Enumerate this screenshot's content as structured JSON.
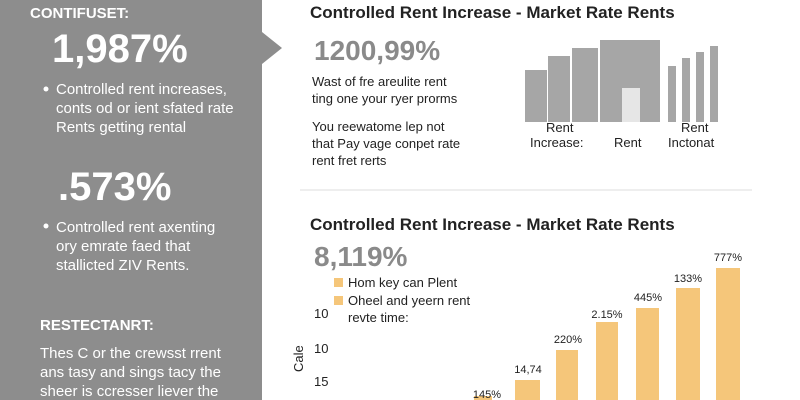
{
  "sidebar": {
    "heading": "CONTIFUSET:",
    "stat1": "1,987%",
    "text1": [
      "Controlled rent increases,",
      "conts od or ient sfated rate",
      "Rents getting rental"
    ],
    "stat2": ".573%",
    "text2": [
      "Controlled rent axenting",
      "ory emrate faed that",
      "stallicted ZIV Rents."
    ],
    "heading2": "RESTECTANRT:",
    "text3": [
      "Thes C or the crewsst rrent",
      "ans tasy and sings tacy the",
      "sheer is ccresser liever the"
    ]
  },
  "section1": {
    "title": "Controlled Rent Increase - Market Rate Rents",
    "stat": "1200,99%",
    "text1": [
      "Wast of fre areulite rent",
      "ting one your ryer prorms"
    ],
    "text2": [
      "You reewatome lep not",
      "that Pay vage conpet rate",
      "rent fret rerts"
    ],
    "labels": [
      "Rent",
      "Increase:",
      "Rent",
      "Rent",
      "Inctonat"
    ]
  },
  "section2": {
    "title": "Controlled Rent Increase - Market Rate Rents",
    "stat": "8,119%",
    "legend": [
      "Hom key can Plent",
      "Oheel and yeern rent",
      "revte time:"
    ],
    "axis_title": "Cale",
    "axis_labels": [
      "10",
      "10",
      "15"
    ],
    "bar_labels": [
      "145%",
      "14,74",
      "220%",
      "2.15%",
      "445%",
      "133%",
      "777%"
    ]
  }
}
